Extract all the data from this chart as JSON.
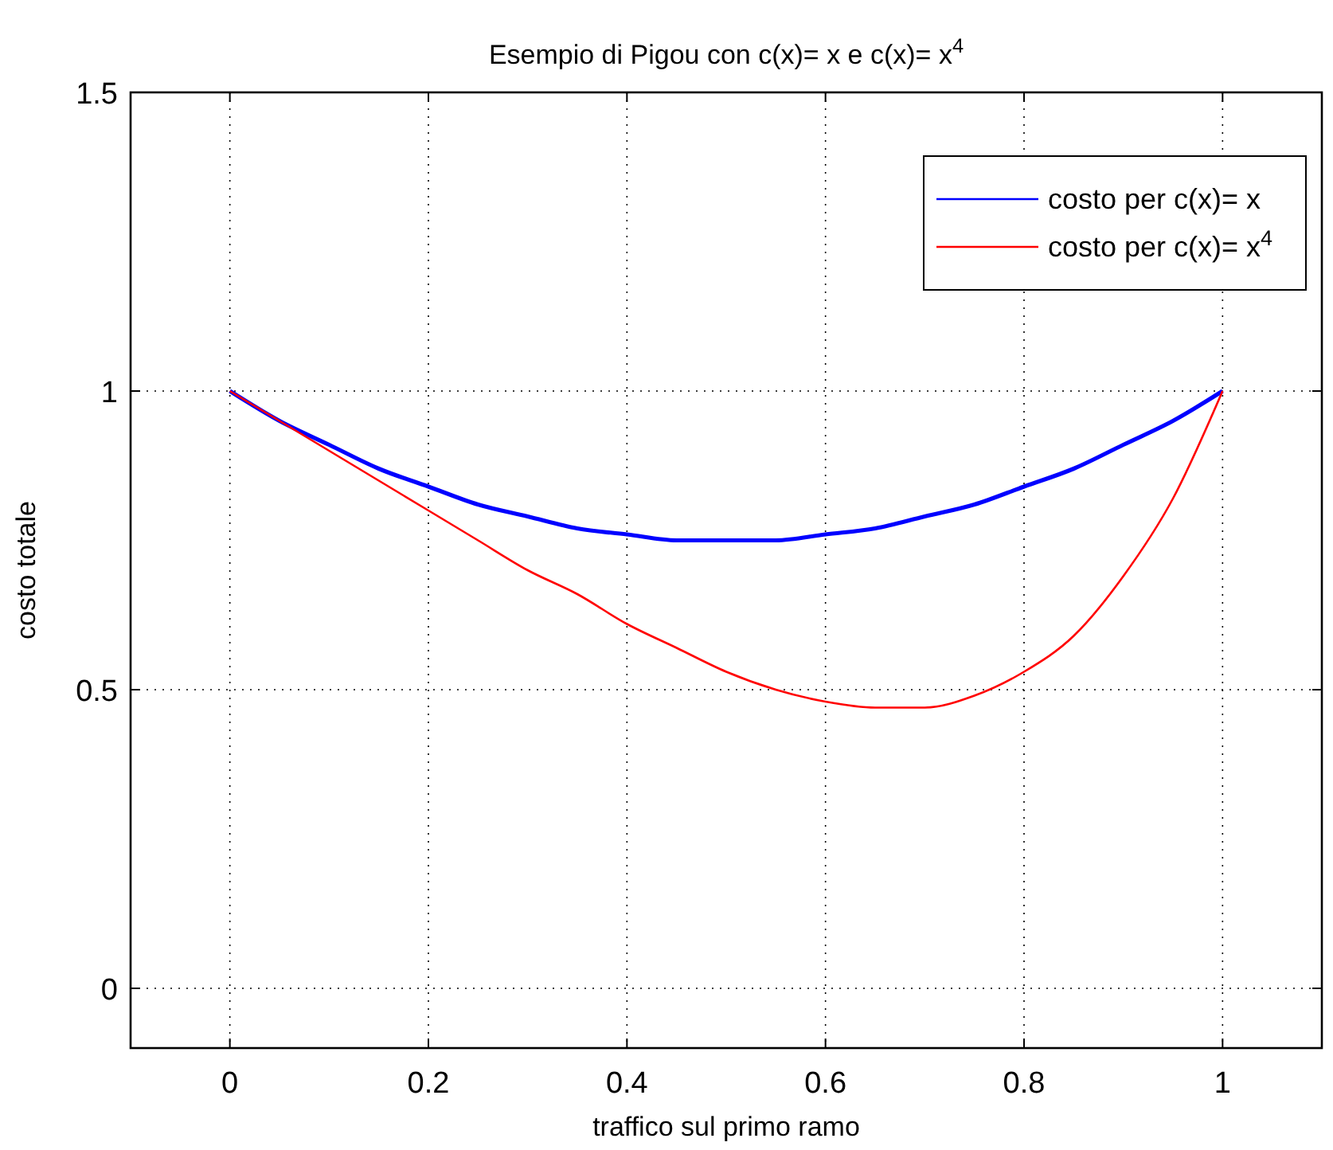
{
  "chart_data": {
    "type": "line",
    "title": "Esempio di Pigou con c(x)= x e c(x)= x$^{4}$",
    "xlabel": "traffico sul primo ramo",
    "ylabel": "costo totale",
    "x": [
      0,
      0.05,
      0.1,
      0.15,
      0.2,
      0.25,
      0.3,
      0.35,
      0.4,
      0.45,
      0.5,
      0.55,
      0.6,
      0.65,
      0.7,
      0.75,
      0.8,
      0.85,
      0.9,
      0.95,
      1
    ],
    "series": [
      {
        "name": "costo per c(x)= x",
        "color": "#0000ff",
        "values": [
          1,
          0.95,
          0.91,
          0.87,
          0.84,
          0.81,
          0.79,
          0.77,
          0.76,
          0.75,
          0.75,
          0.75,
          0.76,
          0.77,
          0.79,
          0.81,
          0.84,
          0.87,
          0.91,
          0.95,
          1
        ]
      },
      {
        "name": "costo per c(x)= x$^{4}$",
        "color": "#ff0000",
        "values": [
          1,
          0.95,
          0.9,
          0.85,
          0.8,
          0.75,
          0.7,
          0.66,
          0.61,
          0.57,
          0.53,
          0.5,
          0.48,
          0.47,
          0.47,
          0.49,
          0.53,
          0.59,
          0.69,
          0.82,
          1
        ]
      }
    ],
    "xlim": [
      -0.1,
      1.1
    ],
    "xticks": [
      0,
      0.2,
      0.4,
      0.6,
      0.8,
      1
    ],
    "ylim": [
      -0.1,
      1.5
    ],
    "yticks": [
      0,
      0.5,
      1,
      1.5
    ],
    "grid": true,
    "legend": "top right",
    "line_style": "solid",
    "marker": "none"
  }
}
